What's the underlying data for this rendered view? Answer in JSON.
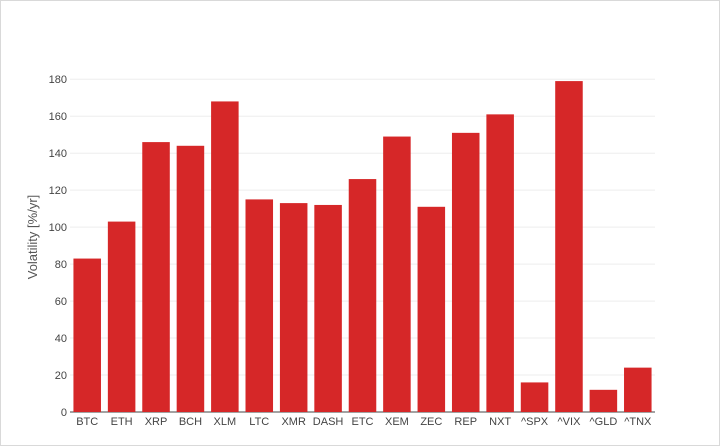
{
  "chart_data": {
    "type": "bar",
    "title": "",
    "xlabel": "",
    "ylabel": "Volatility [%/yr]",
    "categories": [
      "BTC",
      "ETH",
      "XRP",
      "BCH",
      "XLM",
      "LTC",
      "XMR",
      "DASH",
      "ETC",
      "XEM",
      "ZEC",
      "REP",
      "NXT",
      "^SPX",
      "^VIX",
      "^GLD",
      "^TNX"
    ],
    "values": [
      83,
      103,
      146,
      144,
      168,
      115,
      113,
      112,
      126,
      149,
      111,
      151,
      161,
      16,
      179,
      12,
      24
    ],
    "ylim": [
      0,
      185
    ],
    "yticks": [
      0,
      20,
      40,
      60,
      80,
      100,
      120,
      140,
      160,
      180
    ],
    "grid": true,
    "legend": "none",
    "bar_color": "#d62728",
    "grid_color": "#eeeeee"
  }
}
